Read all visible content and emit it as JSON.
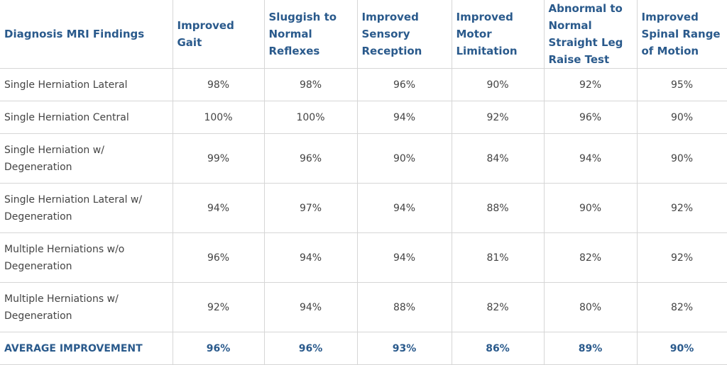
{
  "columns": [
    "Diagnosis MRI Findings",
    "Improved Gait",
    "Sluggish to Normal Reflexes",
    "Improved Sensory Reception",
    "Improved Motor Limitation",
    "Abnormal to Normal Straight Leg Raise Test",
    "Improved Spinal Range of Motion"
  ],
  "rows": [
    {
      "diagnosis": "Single Herniation Lateral",
      "values": [
        "98%",
        "98%",
        "96%",
        "90%",
        "92%",
        "95%"
      ]
    },
    {
      "diagnosis": "Single Herniation Central",
      "values": [
        "100%",
        "100%",
        "94%",
        "92%",
        "96%",
        "90%"
      ]
    },
    {
      "diagnosis": "Single Herniation w/ Degeneration",
      "values": [
        "99%",
        "96%",
        "90%",
        "84%",
        "94%",
        "90%"
      ]
    },
    {
      "diagnosis": "Single Herniation Lateral w/ Degeneration",
      "values": [
        "94%",
        "97%",
        "94%",
        "88%",
        "90%",
        "92%"
      ]
    },
    {
      "diagnosis": "Multiple Herniations w/o Degeneration",
      "values": [
        "96%",
        "94%",
        "94%",
        "81%",
        "82%",
        "92%"
      ]
    },
    {
      "diagnosis": "Multiple Herniations w/ Degeneration",
      "values": [
        "92%",
        "94%",
        "88%",
        "82%",
        "80%",
        "82%"
      ]
    }
  ],
  "average": {
    "label": "AVERAGE IMPROVEMENT",
    "values": [
      "96%",
      "96%",
      "93%",
      "86%",
      "89%",
      "90%"
    ]
  },
  "colors": {
    "header_text": "#2a5a8c",
    "body_text": "#444444",
    "grid": "#d6d6d6"
  }
}
